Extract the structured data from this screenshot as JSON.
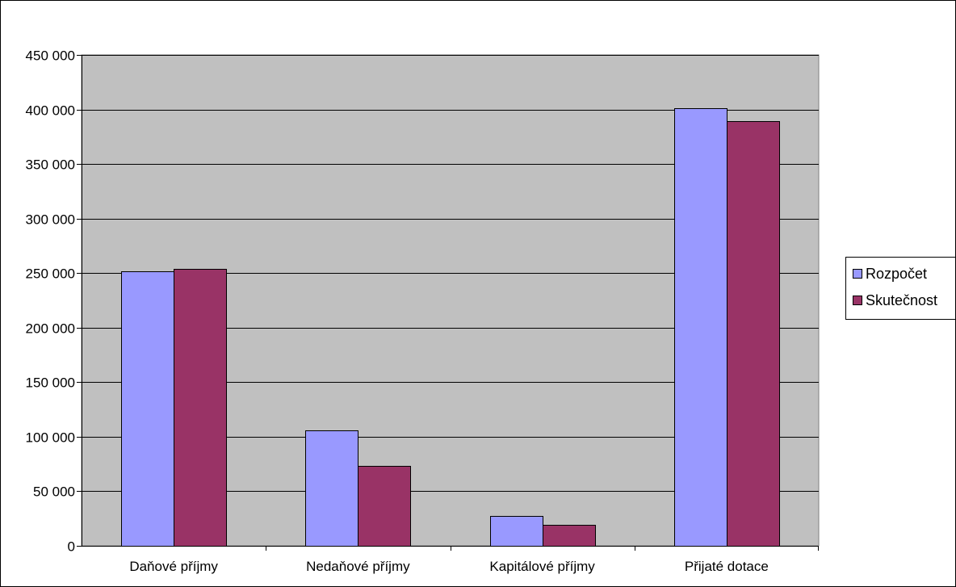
{
  "chart_data": {
    "type": "bar",
    "title": "",
    "xlabel": "",
    "ylabel": "",
    "categories": [
      "Daňové příjmy",
      "Nedaňové příjmy",
      "Kapitálové příjmy",
      "Přijaté dotace"
    ],
    "series": [
      {
        "name": "Rozpočet",
        "values": [
          251500,
          106000,
          27500,
          401000
        ],
        "color": "#9999ff"
      },
      {
        "name": "Skutečnost",
        "values": [
          254000,
          73500,
          19000,
          389500
        ],
        "color": "#993366"
      }
    ],
    "ylim": [
      0,
      450000
    ],
    "yticks": [
      0,
      50000,
      100000,
      150000,
      200000,
      250000,
      300000,
      350000,
      400000,
      450000
    ],
    "ytick_labels": [
      "0",
      "50 000",
      "100 000",
      "150 000",
      "200 000",
      "250 000",
      "300 000",
      "350 000",
      "400 000",
      "450 000"
    ],
    "grid": true,
    "legend_position": "right",
    "plot_background": "#c0c0c0"
  }
}
